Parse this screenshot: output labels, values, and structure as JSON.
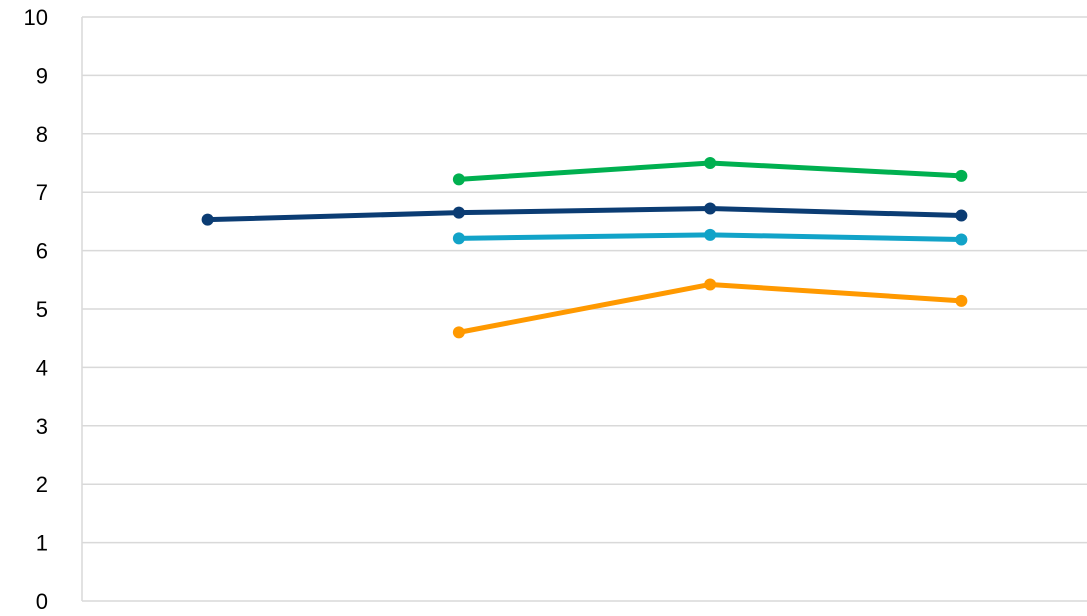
{
  "chart_data": {
    "type": "line",
    "title": "",
    "xlabel": "",
    "ylabel": "",
    "ylim": [
      0,
      10
    ],
    "y_ticks": [
      "0",
      "1",
      "2",
      "3",
      "4",
      "5",
      "6",
      "7",
      "8",
      "9",
      "10"
    ],
    "grid": "horizontal",
    "legend": "none",
    "category_count": 4,
    "series": [
      {
        "color": "#00b050",
        "values": [
          null,
          7.22,
          7.5,
          7.28
        ]
      },
      {
        "color": "#0b3c73",
        "values": [
          6.53,
          6.65,
          6.72,
          6.6
        ]
      },
      {
        "color": "#12a3c8",
        "values": [
          null,
          6.21,
          6.27,
          6.19
        ]
      },
      {
        "color": "#ff9900",
        "values": [
          null,
          4.6,
          5.42,
          5.14
        ]
      }
    ]
  }
}
